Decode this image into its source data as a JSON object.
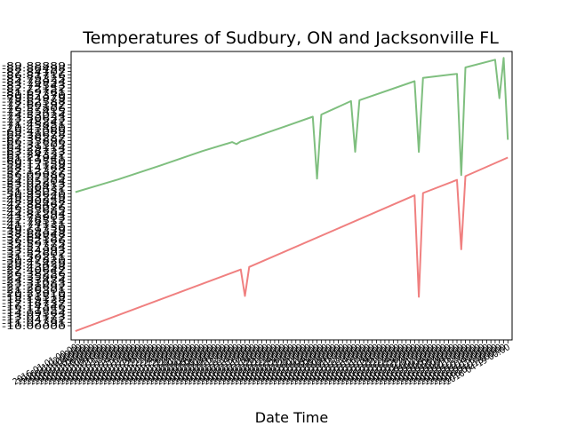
{
  "chart_data": {
    "type": "line",
    "title": "Temperatures of Sudbury, ON and Jacksonville FL",
    "xlabel": "Date Time",
    "ylabel": "",
    "grid": false,
    "legend": "none",
    "series": [
      {
        "color": "#7fbf7f",
        "x": [
          0,
          10,
          20,
          30,
          37,
          38,
          39,
          40,
          50,
          56,
          57,
          58,
          65,
          66,
          67,
          80,
          81,
          82,
          90,
          91,
          92,
          99,
          100,
          101,
          102
        ],
        "y": [
          0.0,
          7.2,
          15.1,
          23.4,
          28.5,
          27.3,
          28.9,
          29.5,
          37.8,
          42.9,
          7.7,
          44.1,
          51.8,
          23.0,
          52.3,
          63.1,
          22.9,
          65.0,
          67.3,
          9.7,
          70.9,
          75.3,
          53.4,
          76.3,
          29.8
        ]
      },
      {
        "color": "#f08080",
        "x": [
          0,
          39,
          40,
          41,
          80,
          81,
          82,
          90,
          91,
          92,
          102
        ],
        "y": [
          -79.0,
          -44.0,
          -59.0,
          -42.5,
          -1.8,
          -59.5,
          -0.5,
          7.0,
          -32.5,
          9.1,
          19.7
        ]
      }
    ],
    "xlim": [
      -1,
      103
    ],
    "ylim": [
      -84,
      80
    ],
    "x_tick_count": 103,
    "y_tick_count": 80,
    "x_tick_labels_legible": false,
    "y_tick_labels_legible": false
  }
}
